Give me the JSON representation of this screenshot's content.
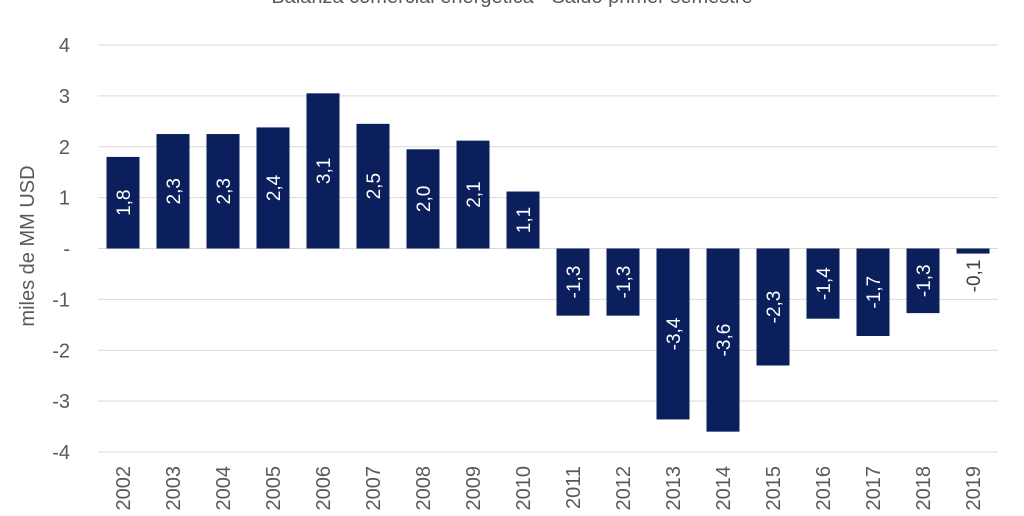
{
  "chart_data": {
    "type": "bar",
    "title": "Balanza comercial energética - Saldo primer semestre",
    "xlabel": "",
    "ylabel": "miles de MM USD",
    "ylim": [
      -4,
      4
    ],
    "yticks": [
      {
        "value": 4,
        "label": "4"
      },
      {
        "value": 3,
        "label": "3"
      },
      {
        "value": 2,
        "label": "2"
      },
      {
        "value": 1,
        "label": "1"
      },
      {
        "value": 0,
        "label": "-"
      },
      {
        "value": -1,
        "label": "-1"
      },
      {
        "value": -2,
        "label": "-2"
      },
      {
        "value": -3,
        "label": "-3"
      },
      {
        "value": -4,
        "label": "-4"
      }
    ],
    "grid": true,
    "legend": "none",
    "bar_color": "#0b1f5c",
    "categories": [
      "2002",
      "2003",
      "2004",
      "2005",
      "2006",
      "2007",
      "2008",
      "2009",
      "2010",
      "2011",
      "2012",
      "2013",
      "2014",
      "2015",
      "2016",
      "2017",
      "2018",
      "2019"
    ],
    "values": [
      1.8,
      2.25,
      2.25,
      2.38,
      3.05,
      2.45,
      1.95,
      2.12,
      1.12,
      -1.32,
      -1.32,
      -3.36,
      -3.6,
      -2.3,
      -1.38,
      -1.72,
      -1.27,
      -0.1
    ],
    "data_labels": [
      "1,8",
      "2,3",
      "2,3",
      "2,4",
      "3,1",
      "2,5",
      "2,0",
      "2,1",
      "1,1",
      "-1,3",
      "-1,3",
      "-3,4",
      "-3,6",
      "-2,3",
      "-1,4",
      "-1,7",
      "-1,3",
      "-0,1"
    ]
  }
}
